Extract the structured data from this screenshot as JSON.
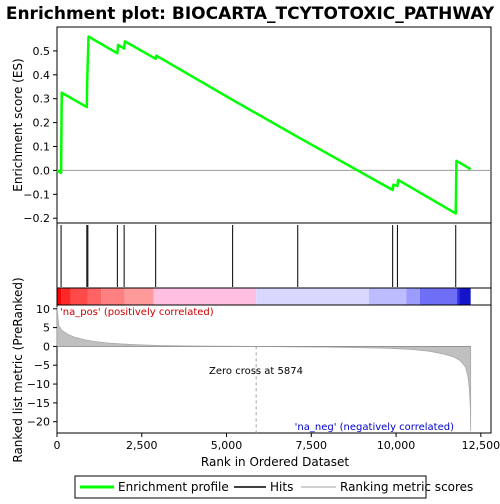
{
  "chart_data": {
    "type": "line",
    "title": "Enrichment plot: BIOCARTA_TCYTOTOXIC_PATHWAY",
    "es_panel": {
      "ylabel": "Enrichment score (ES)",
      "ylim": [
        -0.22,
        0.6
      ],
      "yticks": [
        -0.2,
        -0.1,
        0.0,
        0.1,
        0.2,
        0.3,
        0.4,
        0.5
      ],
      "ytick_labels": [
        "−0.2",
        "−0.1",
        "0.0",
        "0.1",
        "0.2",
        "0.3",
        "0.4",
        "0.5"
      ],
      "series": [
        {
          "name": "Enrichment profile",
          "color": "#00ff00",
          "x": [
            0,
            120,
            140,
            880,
            890,
            910,
            930,
            1780,
            1800,
            1980,
            2000,
            2910,
            2930,
            5180,
            7100,
            9900,
            9920,
            10040,
            10060,
            11760,
            11780,
            12200
          ],
          "y": [
            0.0,
            -0.01,
            0.325,
            0.265,
            0.37,
            0.465,
            0.56,
            0.49,
            0.525,
            0.51,
            0.54,
            0.467,
            0.48,
            0.295,
            0.14,
            -0.082,
            -0.06,
            -0.065,
            -0.04,
            -0.18,
            0.04,
            0.005
          ]
        }
      ]
    },
    "hits": {
      "color": "#000000",
      "positions": [
        120,
        880,
        910,
        1780,
        1980,
        2910,
        5180,
        7100,
        9900,
        10040,
        11760
      ]
    },
    "colorbar": {
      "segments": [
        {
          "x0": 0,
          "x1": 120,
          "color": "#ff0000"
        },
        {
          "x0": 120,
          "x1": 400,
          "color": "#ff2828"
        },
        {
          "x0": 400,
          "x1": 900,
          "color": "#ff4a4a"
        },
        {
          "x0": 900,
          "x1": 1300,
          "color": "#ff6464"
        },
        {
          "x0": 1300,
          "x1": 2000,
          "color": "#ff8080"
        },
        {
          "x0": 2000,
          "x1": 2850,
          "color": "#ff9a9a"
        },
        {
          "x0": 2850,
          "x1": 5874,
          "color": "#ffbfe0"
        },
        {
          "x0": 5874,
          "x1": 9200,
          "color": "#d8d8ff"
        },
        {
          "x0": 9200,
          "x1": 10300,
          "color": "#bcbcff"
        },
        {
          "x0": 10300,
          "x1": 10700,
          "color": "#9c9cff"
        },
        {
          "x0": 10700,
          "x1": 11800,
          "color": "#6e6ef6"
        },
        {
          "x0": 11800,
          "x1": 11860,
          "color": "#3030e8"
        },
        {
          "x0": 11860,
          "x1": 12200,
          "color": "#1414c8"
        }
      ]
    },
    "metric_panel": {
      "ylabel": "Ranked list metric (PreRanked)",
      "ylim": [
        -23,
        11
      ],
      "yticks": [
        -20,
        -15,
        -10,
        -5,
        0,
        5,
        10
      ],
      "ytick_labels": [
        "−20",
        "−15",
        "−10",
        "−5",
        "0",
        "5",
        "10"
      ],
      "series": [
        {
          "name": "Ranking metric scores",
          "color": "#c0c0c0",
          "x": [
            0,
            50,
            150,
            300,
            500,
            800,
            1100,
            1500,
            2000,
            2500,
            3000,
            4000,
            5874,
            7000,
            8000,
            9000,
            9800,
            10500,
            11000,
            11400,
            11700,
            11900,
            12050,
            12120,
            12160,
            12190,
            12200
          ],
          "y": [
            10.5,
            5.5,
            4.2,
            3.3,
            2.5,
            1.8,
            1.3,
            0.9,
            0.6,
            0.4,
            0.25,
            0.1,
            0.0,
            -0.1,
            -0.2,
            -0.35,
            -0.5,
            -0.8,
            -1.3,
            -2.0,
            -2.8,
            -3.8,
            -5.5,
            -8.0,
            -11.0,
            -16.0,
            -22.5
          ]
        }
      ],
      "annotations": {
        "pos": "'na_pos' (positively correlated)",
        "neg": "'na_neg' (negatively correlated)",
        "zero": "Zero cross at 5874",
        "zero_x": 5874
      }
    },
    "xaxis": {
      "xlabel": "Rank in Ordered Dataset",
      "xlim": [
        0,
        12800
      ],
      "xticks": [
        0,
        2500,
        5000,
        7500,
        10000,
        12500
      ],
      "xtick_labels": [
        "0",
        "2,500",
        "5,000",
        "7,500",
        "10,000",
        "12,500"
      ]
    },
    "legend": {
      "placement": "bottom",
      "items": [
        {
          "label": "Enrichment profile",
          "color": "#00ff00"
        },
        {
          "label": "Hits",
          "color": "#000000"
        },
        {
          "label": "Ranking metric scores",
          "color": "#c0c0c0"
        }
      ]
    }
  }
}
